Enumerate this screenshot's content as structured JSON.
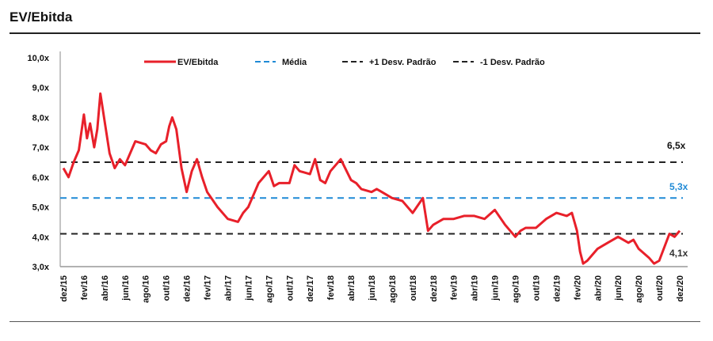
{
  "chart_data": {
    "type": "line",
    "title": "EV/Ebitda",
    "xlabel": "",
    "ylabel": "",
    "ylim": [
      3.0,
      10.0
    ],
    "y_ticks": [
      "3,0x",
      "4,0x",
      "5,0x",
      "6,0x",
      "7,0x",
      "8,0x",
      "9,0x",
      "10,0x"
    ],
    "x_ticks": [
      "dez/15",
      "fev/16",
      "abr/16",
      "jun/16",
      "ago/16",
      "out/16",
      "dez/16",
      "fev/17",
      "abr/17",
      "jun/17",
      "ago/17",
      "out/17",
      "dez/17",
      "fev/18",
      "abr/18",
      "jun/18",
      "ago/18",
      "out/18",
      "dez/18",
      "fev/19",
      "abr/19",
      "jun/19",
      "ago/19",
      "out/19",
      "dez/19",
      "fev/20",
      "abr/20",
      "jun/20",
      "ago/20",
      "out/20",
      "dez/20"
    ],
    "legend": [
      "EV/Ebitda",
      "Média",
      "+1 Desv. Padrão",
      "-1 Desv. Padrão"
    ],
    "legend_position": "top",
    "series": [
      {
        "name": "EV/Ebitda",
        "color": "#e8202a",
        "x_month_index": [
          0,
          0.5,
          1,
          1.5,
          2,
          2.3,
          2.6,
          3,
          3.3,
          3.6,
          4,
          4.5,
          5,
          5.5,
          6,
          7,
          8,
          8.5,
          9,
          9.5,
          10,
          10.3,
          10.6,
          11,
          11.5,
          12,
          12.5,
          13,
          13.5,
          14,
          15,
          16,
          17,
          17.5,
          18,
          19,
          20,
          20.5,
          21,
          22,
          22.5,
          23,
          24,
          24.5,
          25,
          25.5,
          26,
          27,
          28,
          28.5,
          29,
          30,
          30.5,
          31,
          32,
          33,
          34,
          35,
          35.5,
          36,
          36.5,
          37,
          38,
          39,
          40,
          41,
          42,
          43,
          44,
          44.5,
          45,
          46,
          47,
          48,
          49,
          49.5,
          50,
          50.3,
          50.6,
          51,
          52,
          53,
          54,
          55,
          55.5,
          56,
          57,
          57.5,
          58,
          59,
          59.5,
          60
        ],
        "values": [
          6.3,
          6.0,
          6.5,
          6.9,
          8.1,
          7.3,
          7.8,
          7.0,
          7.6,
          8.8,
          7.9,
          6.8,
          6.3,
          6.6,
          6.4,
          7.2,
          7.1,
          6.9,
          6.8,
          7.1,
          7.2,
          7.7,
          8.0,
          7.6,
          6.3,
          5.5,
          6.2,
          6.6,
          6.0,
          5.5,
          5.0,
          4.6,
          4.5,
          4.8,
          5.0,
          5.8,
          6.2,
          5.7,
          5.8,
          5.8,
          6.4,
          6.2,
          6.1,
          6.6,
          5.9,
          5.8,
          6.2,
          6.6,
          5.9,
          5.8,
          5.6,
          5.5,
          5.6,
          5.5,
          5.3,
          5.2,
          4.8,
          5.3,
          4.2,
          4.4,
          4.5,
          4.6,
          4.6,
          4.7,
          4.7,
          4.6,
          4.9,
          4.4,
          4.0,
          4.2,
          4.3,
          4.3,
          4.6,
          4.8,
          4.7,
          4.8,
          4.2,
          3.5,
          3.1,
          3.2,
          3.6,
          3.8,
          4.0,
          3.8,
          3.9,
          3.6,
          3.3,
          3.1,
          3.2,
          4.1,
          4.0,
          4.2
        ]
      },
      {
        "name": "Média",
        "color": "#1f8ad6",
        "value": 5.3,
        "style": "dashed"
      },
      {
        "name": "+1 Desv. Padrão",
        "color": "#222222",
        "value": 6.5,
        "style": "dashed"
      },
      {
        "name": "-1 Desv. Padrão",
        "color": "#222222",
        "value": 4.1,
        "style": "dashed"
      }
    ],
    "annotations": [
      "6,5x",
      "5,3x",
      "4,1x"
    ],
    "grid": false
  }
}
